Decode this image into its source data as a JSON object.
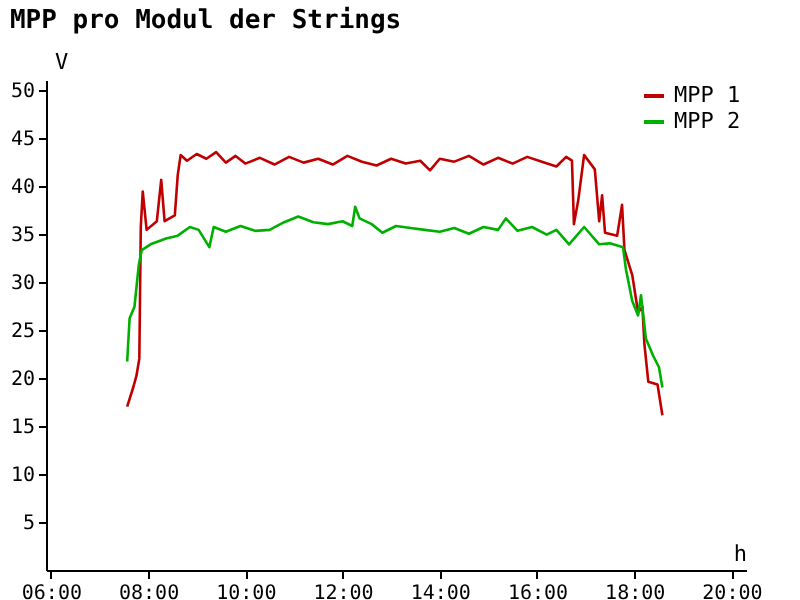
{
  "chart_data": {
    "type": "line",
    "title": "MPP pro Modul der Strings",
    "xlabel": "h",
    "ylabel": "V",
    "xlim": [
      5.9,
      20.3
    ],
    "xticks": [
      {
        "value": 6,
        "label": "06:00"
      },
      {
        "value": 8,
        "label": "08:00"
      },
      {
        "value": 10,
        "label": "10:00"
      },
      {
        "value": 12,
        "label": "12:00"
      },
      {
        "value": 14,
        "label": "14:00"
      },
      {
        "value": 16,
        "label": "16:00"
      },
      {
        "value": 18,
        "label": "18:00"
      },
      {
        "value": 20,
        "label": "20:00"
      }
    ],
    "ylim": [
      0,
      51
    ],
    "yticks": [
      5,
      10,
      15,
      20,
      25,
      30,
      35,
      40,
      45,
      50
    ],
    "grid": false,
    "legend": "top right",
    "series": [
      {
        "name": "MPP 1",
        "color": "#c00000",
        "x": [
          7.57,
          7.7,
          7.76,
          7.82,
          7.85,
          7.89,
          7.97,
          8.18,
          8.27,
          8.34,
          8.55,
          8.61,
          8.67,
          8.8,
          9.0,
          9.2,
          9.4,
          9.6,
          9.8,
          10.0,
          10.3,
          10.6,
          10.9,
          11.2,
          11.5,
          11.8,
          12.1,
          12.4,
          12.7,
          13.0,
          13.3,
          13.6,
          13.8,
          14.0,
          14.3,
          14.6,
          14.9,
          15.2,
          15.5,
          15.8,
          16.1,
          16.4,
          16.6,
          16.72,
          16.76,
          16.85,
          16.97,
          17.19,
          17.28,
          17.34,
          17.4,
          17.65,
          17.75,
          17.8,
          17.96,
          18.08,
          18.17,
          18.21,
          18.29,
          18.48,
          18.58
        ],
        "values": [
          17.0,
          19.1,
          20.2,
          22.0,
          35.7,
          39.4,
          35.4,
          36.3,
          40.6,
          36.3,
          36.9,
          41.1,
          43.2,
          42.6,
          43.3,
          42.8,
          43.5,
          42.4,
          43.1,
          42.3,
          42.9,
          42.2,
          43.0,
          42.4,
          42.8,
          42.2,
          43.1,
          42.5,
          42.1,
          42.8,
          42.3,
          42.6,
          41.6,
          42.8,
          42.5,
          43.1,
          42.2,
          42.9,
          42.3,
          43.0,
          42.5,
          42.0,
          43.0,
          42.6,
          36.0,
          38.5,
          43.2,
          41.7,
          36.3,
          39.0,
          35.1,
          34.8,
          38.0,
          33.3,
          30.7,
          26.8,
          27.4,
          23.5,
          19.6,
          19.3,
          16.1
        ]
      },
      {
        "name": "MPP 2",
        "color": "#00b000",
        "x": [
          7.57,
          7.62,
          7.72,
          7.81,
          7.87,
          8.05,
          8.37,
          8.61,
          8.86,
          9.04,
          9.26,
          9.35,
          9.6,
          9.9,
          10.2,
          10.5,
          10.8,
          11.09,
          11.4,
          11.7,
          12.0,
          12.2,
          12.26,
          12.35,
          12.6,
          12.82,
          13.1,
          13.4,
          13.69,
          14.0,
          14.3,
          14.6,
          14.9,
          15.2,
          15.36,
          15.6,
          15.9,
          16.2,
          16.4,
          16.66,
          16.97,
          17.28,
          17.5,
          17.77,
          17.83,
          17.96,
          18.08,
          18.14,
          18.24,
          18.39,
          18.51,
          18.58
        ],
        "values": [
          21.7,
          26.2,
          27.4,
          31.8,
          33.3,
          33.9,
          34.5,
          34.8,
          35.7,
          35.4,
          33.6,
          35.7,
          35.2,
          35.8,
          35.3,
          35.4,
          36.2,
          36.8,
          36.2,
          36.0,
          36.3,
          35.8,
          37.8,
          36.6,
          36.0,
          35.1,
          35.8,
          35.6,
          35.4,
          35.2,
          35.6,
          35.0,
          35.7,
          35.4,
          36.6,
          35.3,
          35.7,
          34.9,
          35.4,
          33.9,
          35.7,
          33.9,
          34.0,
          33.6,
          31.3,
          28.0,
          26.5,
          28.6,
          24.1,
          22.3,
          21.1,
          19.0
        ]
      }
    ]
  }
}
